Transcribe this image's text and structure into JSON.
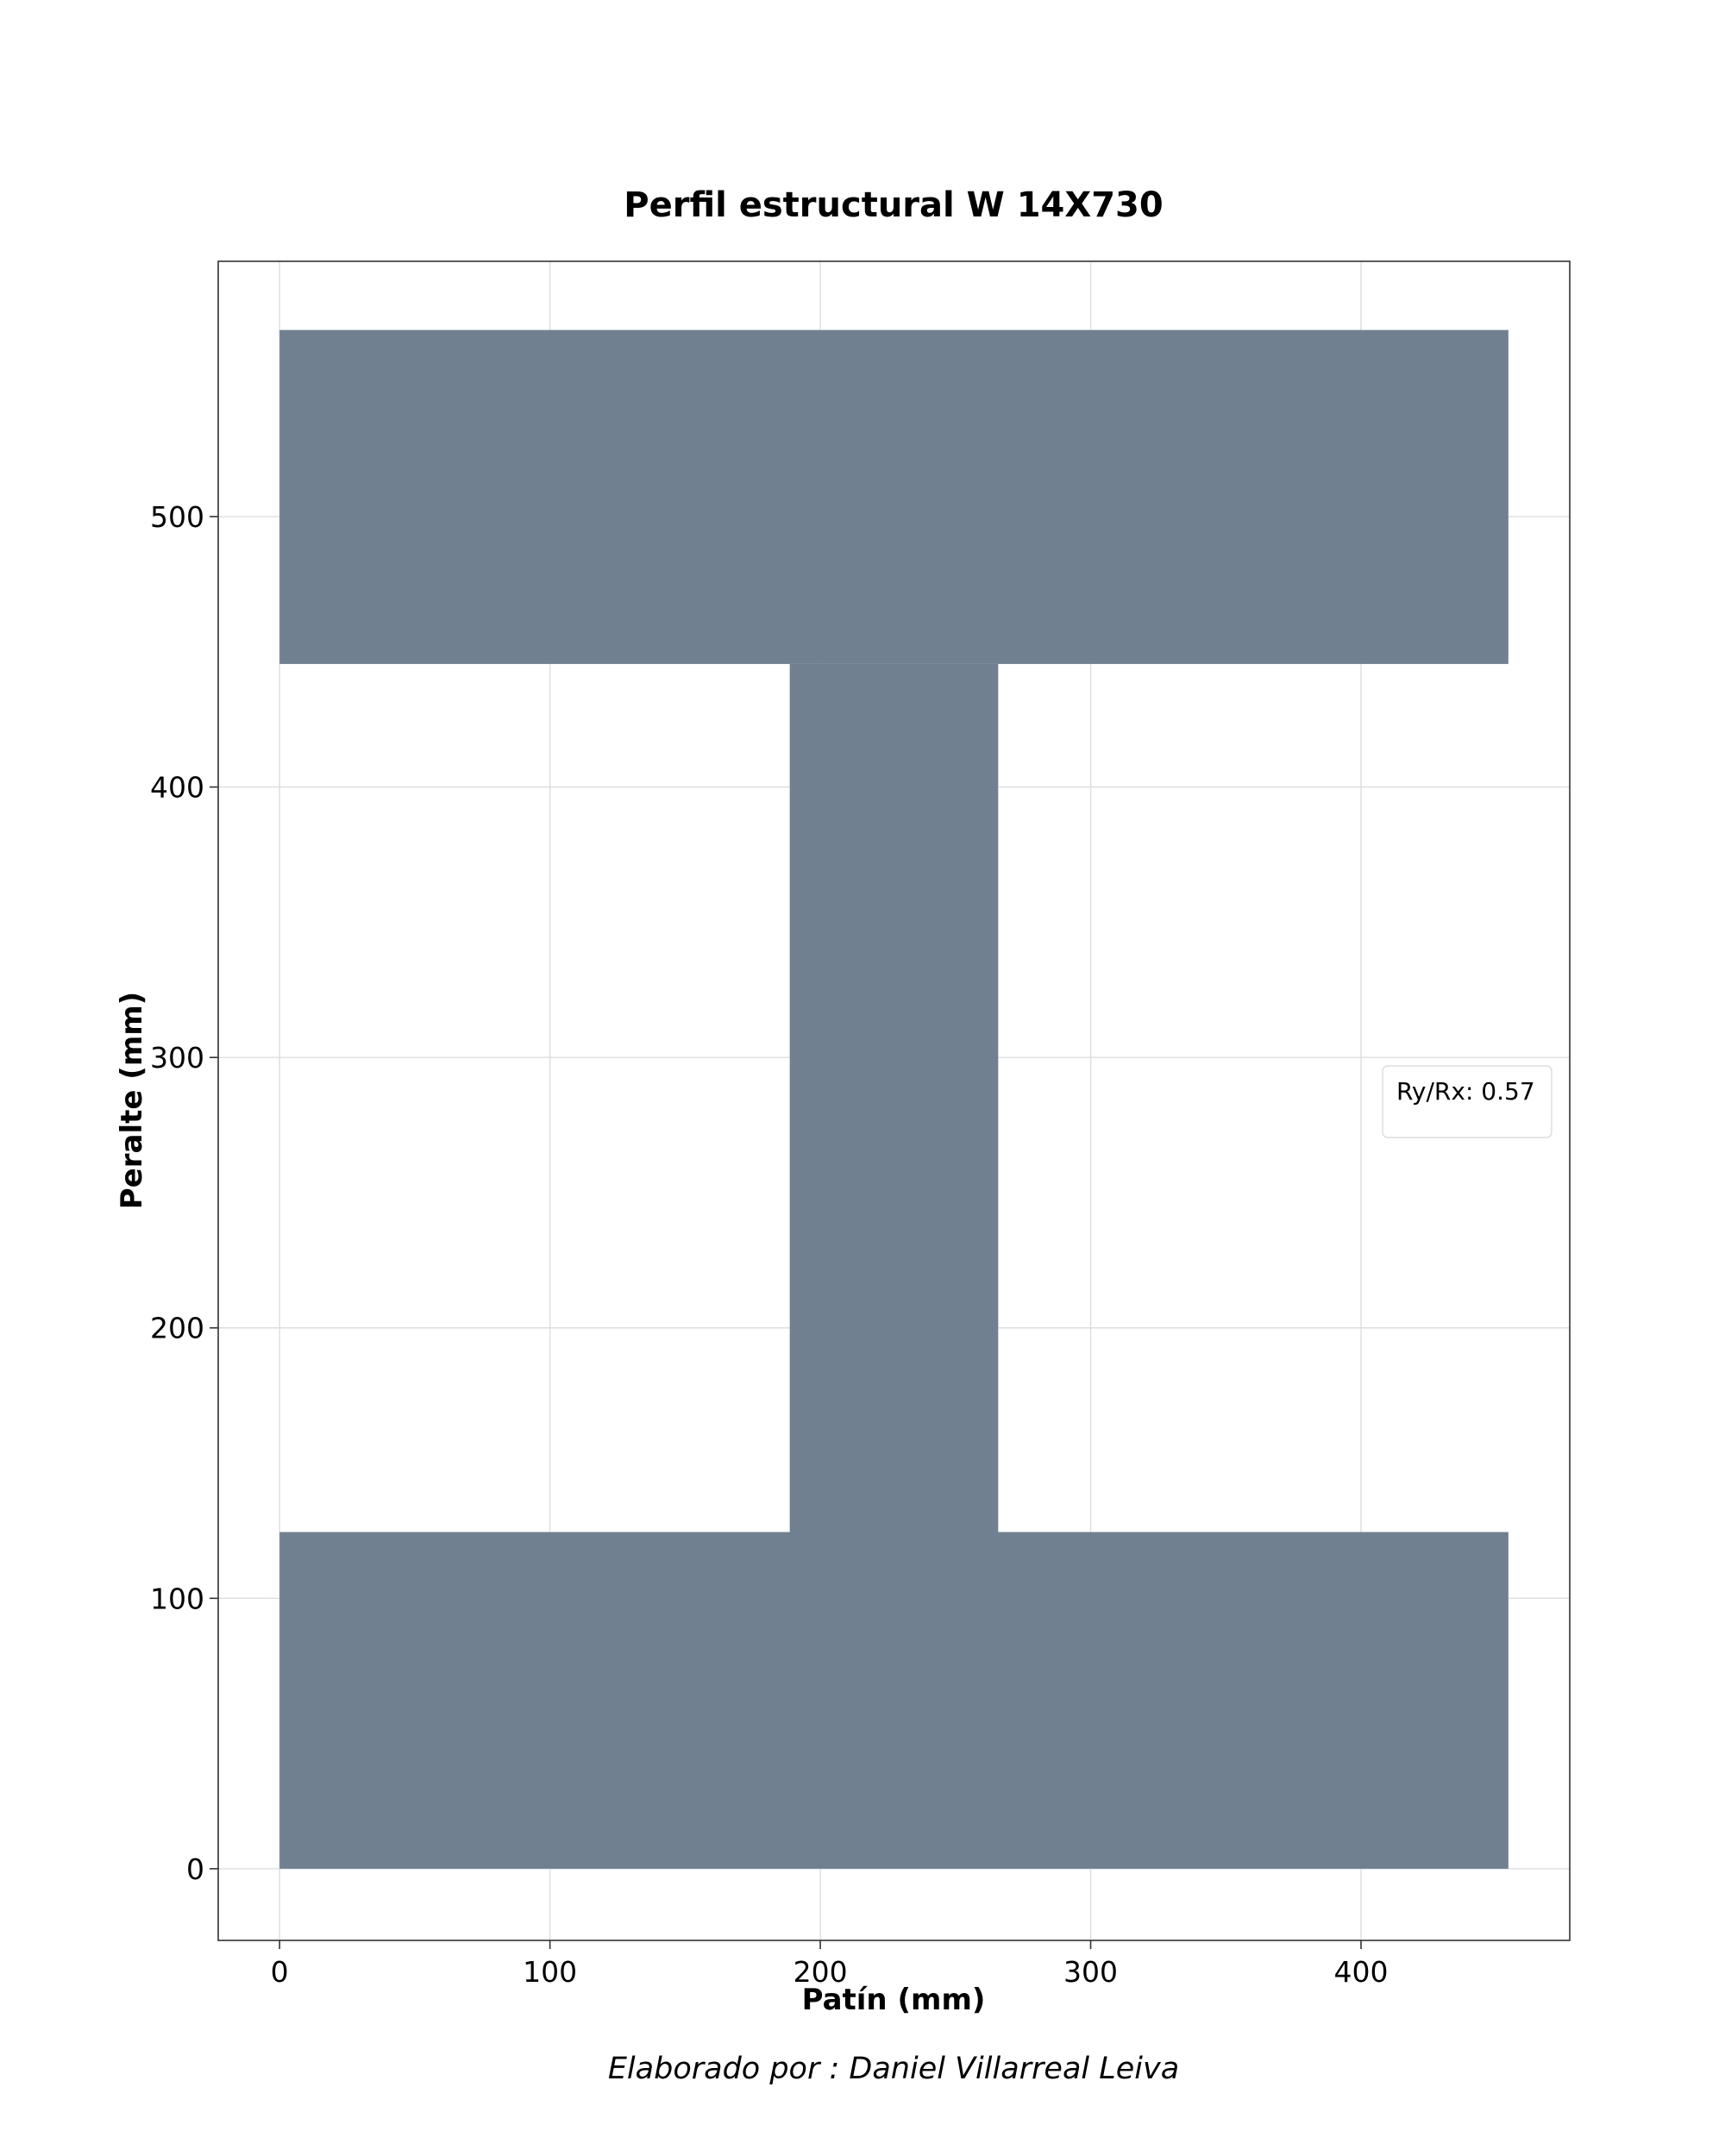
{
  "chart_data": {
    "type": "area",
    "title": "Perfil estructural W 14X730",
    "xlabel": "Patín (mm)",
    "ylabel": "Peralte (mm)",
    "xlim": [
      -22.7,
      477.2
    ],
    "ylim": [
      -26.5,
      594.4
    ],
    "xticks": [
      0,
      100,
      200,
      300,
      400
    ],
    "yticks": [
      0,
      100,
      200,
      300,
      400,
      500
    ],
    "grid": true,
    "color": "#708090",
    "shapes": [
      {
        "name": "bottom-flange",
        "x": [
          0,
          454.5
        ],
        "y": [
          0,
          124.5
        ]
      },
      {
        "name": "web",
        "x": [
          188.7,
          265.8
        ],
        "y": [
          124.5,
          445.5
        ]
      },
      {
        "name": "top-flange",
        "x": [
          0,
          454.5
        ],
        "y": [
          445.5,
          569.0
        ]
      }
    ],
    "legend": {
      "text": "Ry/Rx: 0.57",
      "placement": "center-right"
    }
  },
  "footer": "Elaborado por :  Daniel Villarreal Leiva"
}
